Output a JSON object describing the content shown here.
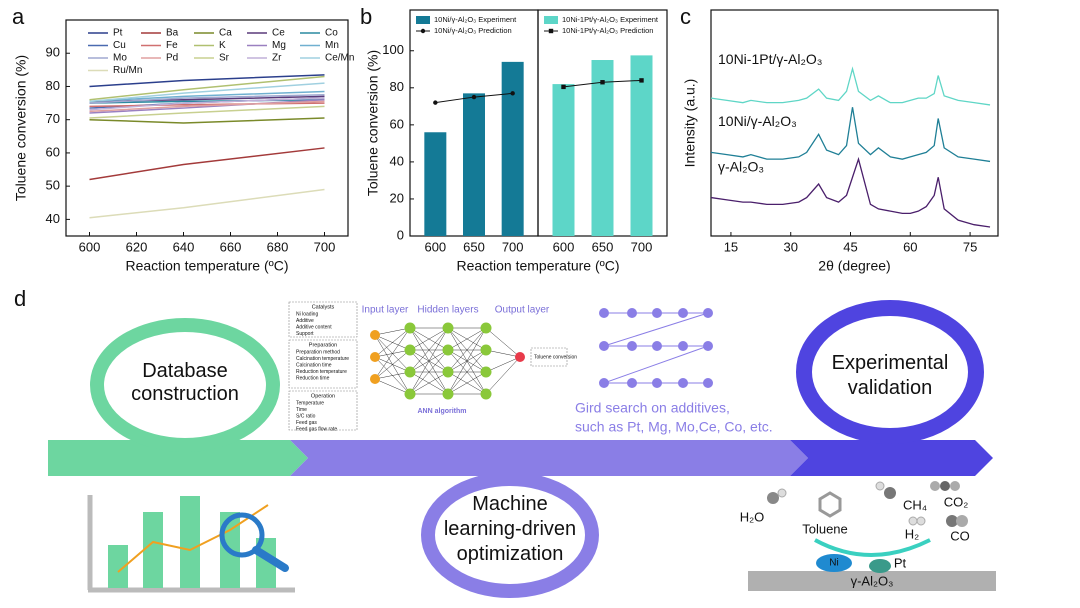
{
  "panel_labels": [
    "a",
    "b",
    "c",
    "d"
  ],
  "chart_data": [
    {
      "type": "line",
      "x_label": "Reaction temperature (ºC)",
      "y_label": "Toluene conversion (%)",
      "x": [
        600,
        640,
        700
      ],
      "xlim": [
        590,
        710
      ],
      "xticks": [
        600,
        620,
        640,
        660,
        680,
        700
      ],
      "ylim": [
        35,
        100
      ],
      "yticks": [
        40,
        50,
        60,
        70,
        80,
        90
      ],
      "series": [
        {
          "name": "Pt",
          "color": "#2b3f8c",
          "values": [
            80,
            81.8,
            83.5
          ]
        },
        {
          "name": "Ba",
          "color": "#a33a3a",
          "values": [
            52,
            56.5,
            61.5
          ]
        },
        {
          "name": "Ca",
          "color": "#7a8a2a",
          "values": [
            70,
            69,
            70.5
          ]
        },
        {
          "name": "Ce",
          "color": "#5a3a7a",
          "values": [
            75.5,
            76,
            77
          ]
        },
        {
          "name": "Co",
          "color": "#2a8aa0",
          "values": [
            75,
            75.5,
            76
          ]
        },
        {
          "name": "Cu",
          "color": "#4a6ab0",
          "values": [
            73.5,
            75,
            76.5
          ]
        },
        {
          "name": "Fe",
          "color": "#d07070",
          "values": [
            74,
            74.5,
            75
          ]
        },
        {
          "name": "K",
          "color": "#b0c070",
          "values": [
            76,
            79,
            83
          ]
        },
        {
          "name": "Mg",
          "color": "#9a80c0",
          "values": [
            72,
            73.5,
            76
          ]
        },
        {
          "name": "Mn",
          "color": "#70b0d0",
          "values": [
            75.5,
            77,
            78.5
          ]
        },
        {
          "name": "Mo",
          "color": "#a0a8d0",
          "values": [
            75,
            76.5,
            77.5
          ]
        },
        {
          "name": "Pd",
          "color": "#e0a0a0",
          "values": [
            72.5,
            74,
            75.5
          ]
        },
        {
          "name": "Sr",
          "color": "#c8d090",
          "values": [
            70.5,
            72,
            74
          ]
        },
        {
          "name": "Zr",
          "color": "#c0b0d8",
          "values": [
            73,
            75,
            76.5
          ]
        },
        {
          "name": "Ce/Mn",
          "color": "#a0d0e0",
          "values": [
            75.5,
            78,
            81
          ]
        },
        {
          "name": "Ru/Mn",
          "color": "#dcdcb8",
          "values": [
            40.5,
            43.5,
            49
          ]
        }
      ]
    },
    {
      "type": "bar",
      "x_label": "Reaction temperature (ºC)",
      "y_label": "Toluene conversion (%)",
      "categories": [
        "600",
        "650",
        "700"
      ],
      "ylim": [
        0,
        122
      ],
      "yticks": [
        0,
        20,
        40,
        60,
        80,
        100
      ],
      "series": [
        {
          "name": "10Ni/γ-Al₂O₃ Experiment",
          "color": "#147a96",
          "values": [
            56,
            77,
            94
          ]
        },
        {
          "name": "10Ni/γ-Al₂O₃ Prediction",
          "color": "#111111",
          "marker": "circle",
          "values": [
            72,
            75,
            77
          ]
        }
      ]
    },
    {
      "type": "bar",
      "categories": [
        "600",
        "650",
        "700"
      ],
      "ylim": [
        0,
        122
      ],
      "series": [
        {
          "name": "10Ni-1Pt/γ-Al₂O₃ Experiment",
          "color": "#5dd6c8",
          "values": [
            82,
            95,
            97.5
          ]
        },
        {
          "name": "10Ni-1Pt/γ-Al₂O₃ Prediction",
          "color": "#111111",
          "marker": "square",
          "values": [
            80.5,
            83,
            84
          ]
        }
      ]
    },
    {
      "type": "line",
      "x_label": "2θ (degree)",
      "y_label": "Intensity (a.u.)",
      "x": [
        10,
        14,
        18,
        20,
        24,
        28,
        32,
        34,
        37,
        39,
        42,
        44,
        45.5,
        47,
        50,
        52,
        55,
        58,
        60,
        62,
        64,
        66,
        67,
        68.5,
        72,
        76,
        80
      ],
      "xlim": [
        10,
        82
      ],
      "xticks": [
        15,
        30,
        45,
        60,
        75
      ],
      "ylim": [
        0,
        100
      ],
      "series": [
        {
          "name": "10Ni-1Pt/γ-Al₂O₃",
          "color": "#5fd6c6",
          "values": [
            61,
            60,
            59,
            60,
            59,
            59,
            60,
            61,
            65,
            61,
            60,
            64,
            74,
            64,
            60,
            62,
            59,
            59,
            60,
            61,
            61,
            63,
            71,
            62,
            60,
            59,
            58
          ]
        },
        {
          "name": "10Ni/γ-Al₂O₃",
          "color": "#1f7f96",
          "values": [
            37,
            36,
            35,
            36,
            34,
            34,
            35,
            37,
            45,
            38,
            36,
            40,
            57,
            41,
            36,
            39,
            35,
            34,
            35,
            36,
            37,
            40,
            52,
            39,
            35,
            34,
            33
          ]
        },
        {
          "name": "γ-Al₂O₃",
          "color": "#4a1f6b",
          "values": [
            17,
            16,
            15,
            15,
            14,
            14,
            15,
            17,
            23,
            17,
            15,
            18,
            26,
            34,
            14,
            12,
            11,
            10,
            10,
            11,
            13,
            18,
            26,
            12,
            7,
            5,
            4
          ]
        }
      ]
    }
  ],
  "diagram": {
    "stages": [
      "Database construction",
      "Machine learning-driven optimization",
      "Experimental validation"
    ],
    "ann": {
      "groups": [
        {
          "title": "Catalysts",
          "items": [
            "Ni loading",
            "Additive",
            "Additive content",
            "Support"
          ]
        },
        {
          "title": "Preparation",
          "items": [
            "Preparation method",
            "Calcination temperature",
            "Calcination time",
            "Reduction temperature",
            "Reduction time"
          ]
        },
        {
          "title": "Operation",
          "items": [
            "Temperature",
            "Time",
            "S/C ratio",
            "Feed gas",
            "Feed gas flow rate"
          ]
        }
      ],
      "input_layer": "Input layer",
      "hidden_layers": "Hidden layers",
      "output_layer": "Output layer",
      "output": "Toluene conversion",
      "caption": "ANN algorithm"
    },
    "grid_search": [
      "Gird search on additives,",
      "such as Pt, Mg, Mo,Ce, Co, etc."
    ],
    "reaction": {
      "molecules": [
        "H₂O",
        "Toluene",
        "CH₄",
        "CO₂",
        "H₂",
        "CO"
      ],
      "metals": [
        "Ni",
        "Pt"
      ],
      "support": "γ-Al₂O₃"
    }
  }
}
